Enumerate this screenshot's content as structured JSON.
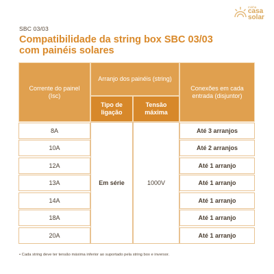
{
  "header": {
    "label": "SBC 03/03",
    "title_line1": "Compatibilidade da string box SBC 03/03",
    "title_line2": "com painéis solares"
  },
  "logo": {
    "small": "minha",
    "line1": "casa",
    "line2": "solar"
  },
  "table": {
    "col1_header": "Corrente do painel (Isc)",
    "group_header": "Arranjo dos painéis (string)",
    "col2_header": "Tipo de ligação",
    "col3_header": "Tensão máxima",
    "col4_header": "Conexões em cada entrada (disjuntor)",
    "rows": [
      {
        "current": "8A",
        "connections": "Até 3 arranjos"
      },
      {
        "current": "10A",
        "connections": "Até 2 arranjos"
      },
      {
        "current": "12A",
        "connections": "Até 1 arranjo"
      },
      {
        "current": "13A",
        "connections": "Até 1 arranjo"
      },
      {
        "current": "14A",
        "connections": "Até 1 arranjo"
      },
      {
        "current": "18A",
        "connections": "Até 1 arranjo"
      },
      {
        "current": "20A",
        "connections": "Até 1 arranjo"
      }
    ],
    "connection_type": "Em série",
    "max_voltage": "1000V"
  },
  "footnote": "• Cada string deve ter tensão máxima inferior ao suportado pela string box e inversor.",
  "colors": {
    "accent": "#d9892a",
    "header_light": "#e0a04f",
    "header_dark": "#d7882a"
  }
}
